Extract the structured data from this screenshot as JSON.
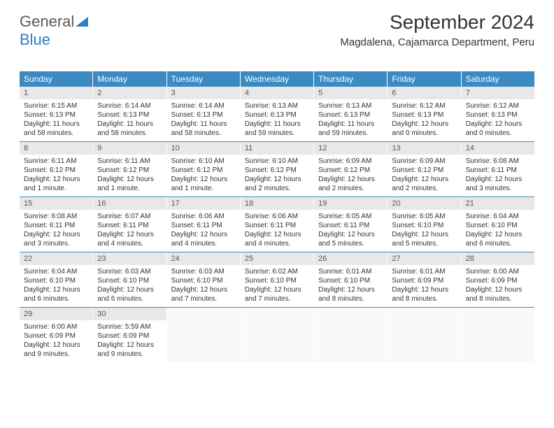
{
  "brand": {
    "part1": "General",
    "part2": "Blue"
  },
  "header": {
    "title": "September 2024",
    "location": "Magdalena, Cajamarca Department, Peru"
  },
  "colors": {
    "header_bg": "#3b8ac4",
    "header_text": "#ffffff",
    "daynum_bg": "#e8e8e8",
    "brand_gray": "#5a5a5a",
    "brand_blue": "#2f7dc4",
    "divider": "#3b8ac4"
  },
  "dayNames": [
    "Sunday",
    "Monday",
    "Tuesday",
    "Wednesday",
    "Thursday",
    "Friday",
    "Saturday"
  ],
  "weeks": [
    [
      {
        "n": "1",
        "sr": "Sunrise: 6:15 AM",
        "ss": "Sunset: 6:13 PM",
        "dl": "Daylight: 11 hours and 58 minutes."
      },
      {
        "n": "2",
        "sr": "Sunrise: 6:14 AM",
        "ss": "Sunset: 6:13 PM",
        "dl": "Daylight: 11 hours and 58 minutes."
      },
      {
        "n": "3",
        "sr": "Sunrise: 6:14 AM",
        "ss": "Sunset: 6:13 PM",
        "dl": "Daylight: 11 hours and 58 minutes."
      },
      {
        "n": "4",
        "sr": "Sunrise: 6:13 AM",
        "ss": "Sunset: 6:13 PM",
        "dl": "Daylight: 11 hours and 59 minutes."
      },
      {
        "n": "5",
        "sr": "Sunrise: 6:13 AM",
        "ss": "Sunset: 6:13 PM",
        "dl": "Daylight: 11 hours and 59 minutes."
      },
      {
        "n": "6",
        "sr": "Sunrise: 6:12 AM",
        "ss": "Sunset: 6:13 PM",
        "dl": "Daylight: 12 hours and 0 minutes."
      },
      {
        "n": "7",
        "sr": "Sunrise: 6:12 AM",
        "ss": "Sunset: 6:13 PM",
        "dl": "Daylight: 12 hours and 0 minutes."
      }
    ],
    [
      {
        "n": "8",
        "sr": "Sunrise: 6:11 AM",
        "ss": "Sunset: 6:12 PM",
        "dl": "Daylight: 12 hours and 1 minute."
      },
      {
        "n": "9",
        "sr": "Sunrise: 6:11 AM",
        "ss": "Sunset: 6:12 PM",
        "dl": "Daylight: 12 hours and 1 minute."
      },
      {
        "n": "10",
        "sr": "Sunrise: 6:10 AM",
        "ss": "Sunset: 6:12 PM",
        "dl": "Daylight: 12 hours and 1 minute."
      },
      {
        "n": "11",
        "sr": "Sunrise: 6:10 AM",
        "ss": "Sunset: 6:12 PM",
        "dl": "Daylight: 12 hours and 2 minutes."
      },
      {
        "n": "12",
        "sr": "Sunrise: 6:09 AM",
        "ss": "Sunset: 6:12 PM",
        "dl": "Daylight: 12 hours and 2 minutes."
      },
      {
        "n": "13",
        "sr": "Sunrise: 6:09 AM",
        "ss": "Sunset: 6:12 PM",
        "dl": "Daylight: 12 hours and 2 minutes."
      },
      {
        "n": "14",
        "sr": "Sunrise: 6:08 AM",
        "ss": "Sunset: 6:11 PM",
        "dl": "Daylight: 12 hours and 3 minutes."
      }
    ],
    [
      {
        "n": "15",
        "sr": "Sunrise: 6:08 AM",
        "ss": "Sunset: 6:11 PM",
        "dl": "Daylight: 12 hours and 3 minutes."
      },
      {
        "n": "16",
        "sr": "Sunrise: 6:07 AM",
        "ss": "Sunset: 6:11 PM",
        "dl": "Daylight: 12 hours and 4 minutes."
      },
      {
        "n": "17",
        "sr": "Sunrise: 6:06 AM",
        "ss": "Sunset: 6:11 PM",
        "dl": "Daylight: 12 hours and 4 minutes."
      },
      {
        "n": "18",
        "sr": "Sunrise: 6:06 AM",
        "ss": "Sunset: 6:11 PM",
        "dl": "Daylight: 12 hours and 4 minutes."
      },
      {
        "n": "19",
        "sr": "Sunrise: 6:05 AM",
        "ss": "Sunset: 6:11 PM",
        "dl": "Daylight: 12 hours and 5 minutes."
      },
      {
        "n": "20",
        "sr": "Sunrise: 6:05 AM",
        "ss": "Sunset: 6:10 PM",
        "dl": "Daylight: 12 hours and 5 minutes."
      },
      {
        "n": "21",
        "sr": "Sunrise: 6:04 AM",
        "ss": "Sunset: 6:10 PM",
        "dl": "Daylight: 12 hours and 6 minutes."
      }
    ],
    [
      {
        "n": "22",
        "sr": "Sunrise: 6:04 AM",
        "ss": "Sunset: 6:10 PM",
        "dl": "Daylight: 12 hours and 6 minutes."
      },
      {
        "n": "23",
        "sr": "Sunrise: 6:03 AM",
        "ss": "Sunset: 6:10 PM",
        "dl": "Daylight: 12 hours and 6 minutes."
      },
      {
        "n": "24",
        "sr": "Sunrise: 6:03 AM",
        "ss": "Sunset: 6:10 PM",
        "dl": "Daylight: 12 hours and 7 minutes."
      },
      {
        "n": "25",
        "sr": "Sunrise: 6:02 AM",
        "ss": "Sunset: 6:10 PM",
        "dl": "Daylight: 12 hours and 7 minutes."
      },
      {
        "n": "26",
        "sr": "Sunrise: 6:01 AM",
        "ss": "Sunset: 6:10 PM",
        "dl": "Daylight: 12 hours and 8 minutes."
      },
      {
        "n": "27",
        "sr": "Sunrise: 6:01 AM",
        "ss": "Sunset: 6:09 PM",
        "dl": "Daylight: 12 hours and 8 minutes."
      },
      {
        "n": "28",
        "sr": "Sunrise: 6:00 AM",
        "ss": "Sunset: 6:09 PM",
        "dl": "Daylight: 12 hours and 8 minutes."
      }
    ],
    [
      {
        "n": "29",
        "sr": "Sunrise: 6:00 AM",
        "ss": "Sunset: 6:09 PM",
        "dl": "Daylight: 12 hours and 9 minutes."
      },
      {
        "n": "30",
        "sr": "Sunrise: 5:59 AM",
        "ss": "Sunset: 6:09 PM",
        "dl": "Daylight: 12 hours and 9 minutes."
      },
      null,
      null,
      null,
      null,
      null
    ]
  ]
}
